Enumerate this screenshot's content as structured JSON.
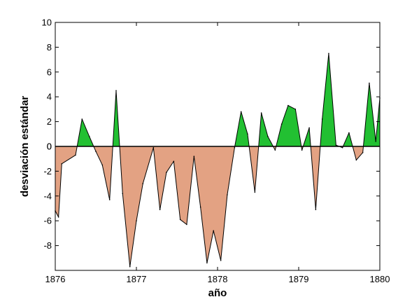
{
  "chart_data": {
    "type": "area",
    "xlabel": "año",
    "ylabel": "desviación estándar",
    "xlim": [
      1876,
      1880
    ],
    "ylim": [
      -10,
      10
    ],
    "x_ticks": [
      1876,
      1877,
      1878,
      1879,
      1880
    ],
    "y_ticks": [
      -8,
      -6,
      -4,
      -2,
      0,
      2,
      4,
      6,
      8,
      10
    ],
    "grid": false,
    "positive_color": "#22c032",
    "negative_color": "#e3a283",
    "baseline_color": "#000000",
    "series": [
      {
        "x": [
          1876.0,
          1876.04,
          1876.08,
          1876.25,
          1876.33,
          1876.42,
          1876.5,
          1876.58,
          1876.67,
          1876.75,
          1876.83,
          1876.92,
          1877.0,
          1877.08,
          1877.21,
          1877.29,
          1877.37,
          1877.46,
          1877.54,
          1877.62,
          1877.71,
          1877.79,
          1877.87,
          1877.95,
          1878.04,
          1878.12,
          1878.21,
          1878.29,
          1878.37,
          1878.46,
          1878.54,
          1878.62,
          1878.71,
          1878.79,
          1878.87,
          1878.96,
          1879.04,
          1879.13,
          1879.21,
          1879.29,
          1879.37,
          1879.46,
          1879.54,
          1879.62,
          1879.71,
          1879.79,
          1879.87,
          1879.95,
          1880.0
        ],
        "y": [
          -5.2,
          -5.7,
          -1.4,
          -0.7,
          2.2,
          0.8,
          -0.4,
          -1.5,
          -4.3,
          4.5,
          -3.8,
          -9.7,
          -6.0,
          -3.0,
          -0.1,
          -5.1,
          -2.1,
          -1.2,
          -5.9,
          -6.3,
          -0.8,
          -4.9,
          -9.4,
          -6.8,
          -9.2,
          -3.9,
          -0.1,
          2.8,
          1.0,
          -3.7,
          2.7,
          0.8,
          -0.3,
          1.8,
          3.3,
          3.0,
          -0.3,
          1.5,
          -5.1,
          2.2,
          7.5,
          0.1,
          -0.1,
          1.1,
          -1.1,
          -0.5,
          5.1,
          0.4,
          3.9
        ]
      }
    ]
  }
}
